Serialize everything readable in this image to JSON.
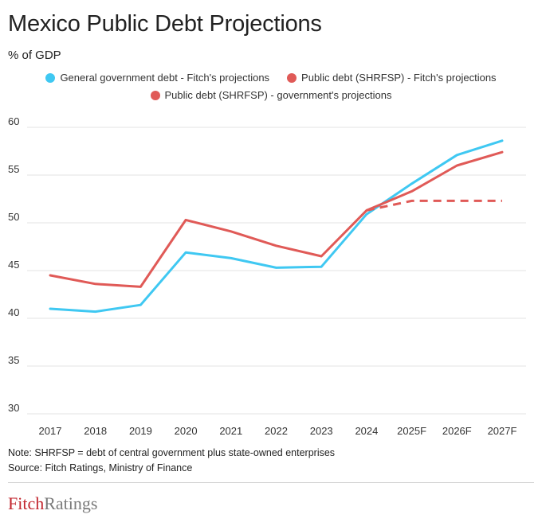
{
  "header": {
    "title": "Mexico Public Debt Projections",
    "subtitle": "% of GDP"
  },
  "legend": {
    "items": [
      {
        "label": "General government debt - Fitch's projections",
        "color": "#3fc8f2"
      },
      {
        "label": "Public debt (SHRFSP) - Fitch's projections",
        "color": "#e05a57"
      },
      {
        "label": "Public debt (SHRFSP) - government's projections",
        "color": "#e05a57"
      }
    ]
  },
  "chart_data": {
    "type": "line",
    "title": "Mexico Public Debt Projections",
    "ylabel": "% of GDP",
    "categories": [
      "2017",
      "2018",
      "2019",
      "2020",
      "2021",
      "2022",
      "2023",
      "2024",
      "2025F",
      "2026F",
      "2027F"
    ],
    "yticks": [
      30,
      35,
      40,
      45,
      50,
      55,
      60
    ],
    "ylim": [
      30,
      60
    ],
    "grid": true,
    "legend_position": "top",
    "series": [
      {
        "name": "General government debt - Fitch's projections",
        "color": "#3fc8f2",
        "style": "solid",
        "values": [
          41.0,
          40.7,
          41.4,
          46.9,
          46.3,
          45.3,
          45.4,
          50.9,
          54.1,
          57.1,
          58.6
        ]
      },
      {
        "name": "Public debt (SHRFSP) - Fitch's projections",
        "color": "#e05a57",
        "style": "solid",
        "values": [
          44.5,
          43.6,
          43.3,
          50.3,
          49.1,
          47.6,
          46.5,
          51.3,
          53.3,
          56.0,
          57.4
        ]
      },
      {
        "name": "Public debt (SHRFSP) - government's projections",
        "color": "#e05a57",
        "style": "dashed",
        "values": [
          null,
          null,
          null,
          null,
          null,
          null,
          null,
          51.3,
          52.3,
          52.3,
          52.3
        ]
      }
    ]
  },
  "footer": {
    "note": "Note: SHRFSP = debt of central government plus state-owned enterprises",
    "source": "Source: Fitch Ratings, Ministry of Finance"
  },
  "logo": {
    "part1": "Fitch",
    "part2": "Ratings"
  }
}
